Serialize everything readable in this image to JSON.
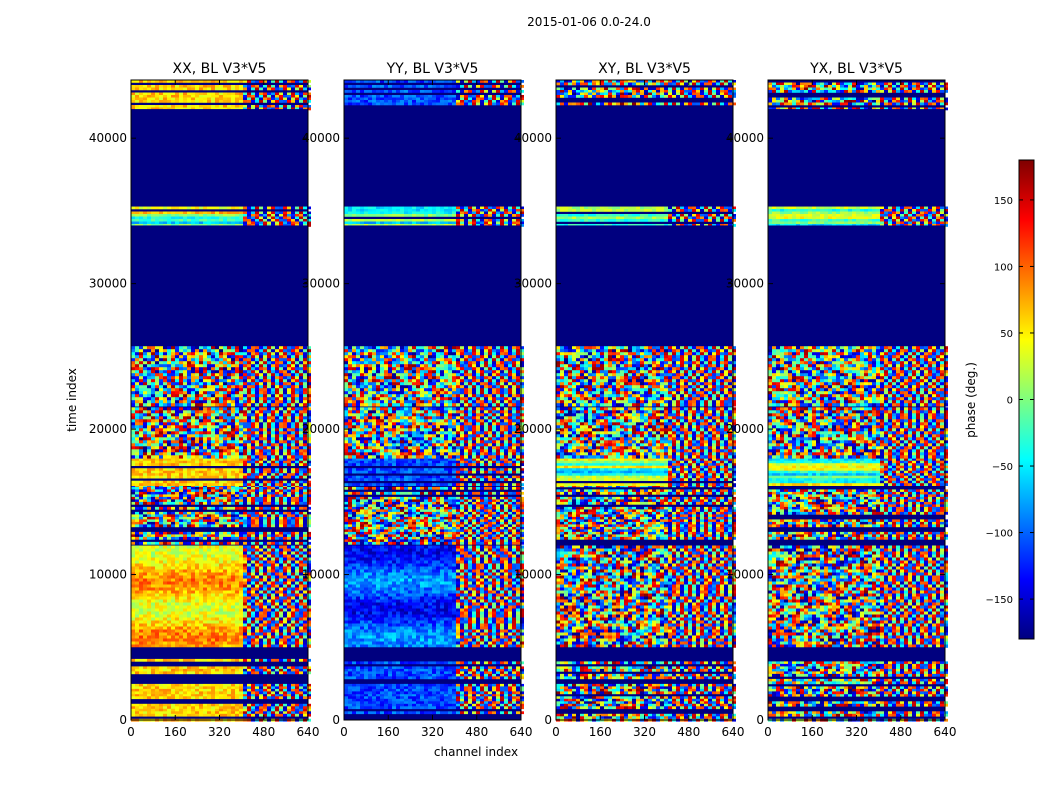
{
  "figure": {
    "suptitle": "2015-01-06 0.0-24.0",
    "xlabel": "channel index",
    "ylabel": "time index"
  },
  "colorbar": {
    "label": "phase (deg.)",
    "ticks": [
      "150",
      "100",
      "50",
      "0",
      "−50",
      "−100",
      "−150"
    ],
    "tick_values": [
      150,
      100,
      50,
      0,
      -50,
      -100,
      -150
    ],
    "range": [
      -180,
      180
    ],
    "colormap": "jet"
  },
  "colors": {
    "background": "#ffffff",
    "masked": "#00007f",
    "jet_stops": [
      "#00007f",
      "#0000ff",
      "#007fff",
      "#00ffff",
      "#7fff7f",
      "#ffff00",
      "#ff7f00",
      "#ff0000",
      "#7f0000"
    ]
  },
  "chart_data": {
    "type": "heatmap",
    "x_range": [
      0,
      640
    ],
    "y_range": [
      0,
      44000
    ],
    "x_ticks": [
      "0",
      "160",
      "320",
      "480",
      "640"
    ],
    "x_tick_values": [
      0,
      160,
      320,
      480,
      640
    ],
    "y_ticks": [
      "0",
      "10000",
      "20000",
      "30000",
      "40000"
    ],
    "y_tick_values": [
      0,
      10000,
      20000,
      30000,
      40000
    ],
    "masked_time_ranges": [
      [
        4700,
        5000
      ],
      [
        26000,
        34000
      ],
      [
        35300,
        42000
      ]
    ],
    "time_segments": [
      [
        0,
        1800,
        "gapped"
      ],
      [
        1800,
        4200,
        "gapped"
      ],
      [
        5100,
        12000,
        "dense"
      ],
      [
        12200,
        16200,
        "gapped"
      ],
      [
        16200,
        18000,
        "banded"
      ],
      [
        18100,
        21500,
        "dense"
      ],
      [
        21600,
        25700,
        "dense"
      ],
      [
        34000,
        35300,
        "banded"
      ],
      [
        42000,
        44000,
        "gapped"
      ]
    ],
    "panels": [
      {
        "title": "XX, BL V3*V5",
        "low_channel_phase_deg": 60,
        "high_channel_phase_deg": 0,
        "split_channel": 400
      },
      {
        "title": "YY, BL V3*V5",
        "low_channel_phase_deg": -110,
        "high_channel_phase_deg": 0,
        "split_channel": 400
      },
      {
        "title": "XY, BL V3*V5",
        "low_channel_phase_deg": null,
        "high_channel_phase_deg": 0,
        "split_channel": 400
      },
      {
        "title": "YX, BL V3*V5",
        "low_channel_phase_deg": null,
        "high_channel_phase_deg": 0,
        "split_channel": 400
      }
    ]
  }
}
